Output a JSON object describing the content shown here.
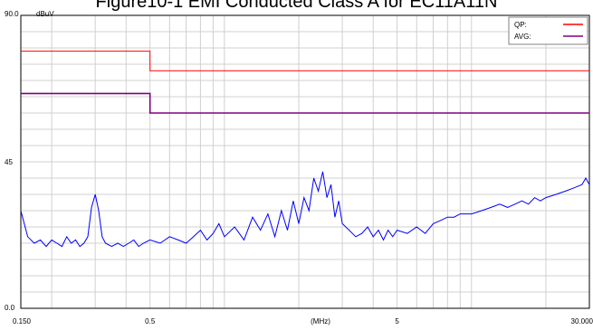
{
  "title": "Figure10-1 EMI Conducted Class A for EC11A11N",
  "chart_data": {
    "type": "line",
    "title": "Figure10-1 EMI Conducted Class A for EC11A11N",
    "xlabel": "(MHz)",
    "ylabel": "dBuV",
    "x_scale": "log",
    "xlim": [
      0.15,
      30.0
    ],
    "ylim": [
      0.0,
      90.0
    ],
    "grid": true,
    "legend_position": "top-right",
    "x_tick_labels": [
      {
        "value": 0.15,
        "label": "0.150"
      },
      {
        "value": 0.5,
        "label": "0.5"
      },
      {
        "value": 5,
        "label": "5"
      },
      {
        "value": 30.0,
        "label": "30.000"
      }
    ],
    "y_tick_labels": [
      {
        "value": 90.0,
        "label": "90.0"
      },
      {
        "value": 45,
        "label": "45"
      },
      {
        "value": 0.0,
        "label": "0.0"
      }
    ],
    "x_center_label": "(MHz)",
    "series": [
      {
        "name": "QP:",
        "color": "#ff0000",
        "points": [
          [
            0.15,
            79
          ],
          [
            0.5,
            79
          ],
          [
            0.5,
            73
          ],
          [
            30.0,
            73
          ]
        ]
      },
      {
        "name": "AVG:",
        "color": "#800080",
        "points": [
          [
            0.15,
            66
          ],
          [
            0.5,
            66
          ],
          [
            0.5,
            60
          ],
          [
            30.0,
            60
          ]
        ]
      },
      {
        "color": "#0000ff",
        "points": [
          [
            0.15,
            30
          ],
          [
            0.16,
            22
          ],
          [
            0.17,
            20
          ],
          [
            0.18,
            21
          ],
          [
            0.19,
            19
          ],
          [
            0.2,
            21
          ],
          [
            0.21,
            20
          ],
          [
            0.22,
            19
          ],
          [
            0.23,
            22
          ],
          [
            0.24,
            20
          ],
          [
            0.25,
            21
          ],
          [
            0.26,
            19
          ],
          [
            0.27,
            20
          ],
          [
            0.28,
            22
          ],
          [
            0.29,
            31
          ],
          [
            0.3,
            35
          ],
          [
            0.31,
            30
          ],
          [
            0.32,
            22
          ],
          [
            0.33,
            20
          ],
          [
            0.35,
            19
          ],
          [
            0.37,
            20
          ],
          [
            0.39,
            19
          ],
          [
            0.41,
            20
          ],
          [
            0.43,
            21
          ],
          [
            0.45,
            19
          ],
          [
            0.47,
            20
          ],
          [
            0.5,
            21
          ],
          [
            0.55,
            20
          ],
          [
            0.6,
            22
          ],
          [
            0.65,
            21
          ],
          [
            0.7,
            20
          ],
          [
            0.75,
            22
          ],
          [
            0.8,
            24
          ],
          [
            0.85,
            21
          ],
          [
            0.9,
            23
          ],
          [
            0.95,
            26
          ],
          [
            1.0,
            22
          ],
          [
            1.1,
            25
          ],
          [
            1.2,
            21
          ],
          [
            1.3,
            28
          ],
          [
            1.4,
            24
          ],
          [
            1.5,
            29
          ],
          [
            1.6,
            22
          ],
          [
            1.7,
            30
          ],
          [
            1.8,
            24
          ],
          [
            1.9,
            33
          ],
          [
            2.0,
            26
          ],
          [
            2.1,
            34
          ],
          [
            2.2,
            30
          ],
          [
            2.3,
            40
          ],
          [
            2.4,
            36
          ],
          [
            2.5,
            42
          ],
          [
            2.6,
            34
          ],
          [
            2.7,
            38
          ],
          [
            2.8,
            28
          ],
          [
            2.9,
            33
          ],
          [
            3.0,
            26
          ],
          [
            3.2,
            24
          ],
          [
            3.4,
            22
          ],
          [
            3.6,
            23
          ],
          [
            3.8,
            25
          ],
          [
            4.0,
            22
          ],
          [
            4.2,
            24
          ],
          [
            4.4,
            21
          ],
          [
            4.6,
            24
          ],
          [
            4.8,
            22
          ],
          [
            5.0,
            24
          ],
          [
            5.5,
            23
          ],
          [
            6.0,
            25
          ],
          [
            6.5,
            23
          ],
          [
            7.0,
            26
          ],
          [
            7.5,
            27
          ],
          [
            8.0,
            28
          ],
          [
            8.5,
            28
          ],
          [
            9.0,
            29
          ],
          [
            10.0,
            29
          ],
          [
            11.0,
            30
          ],
          [
            12.0,
            31
          ],
          [
            13.0,
            32
          ],
          [
            14.0,
            31
          ],
          [
            15.0,
            32
          ],
          [
            16.0,
            33
          ],
          [
            17.0,
            32
          ],
          [
            18.0,
            34
          ],
          [
            19.0,
            33
          ],
          [
            20.0,
            34
          ],
          [
            22.0,
            35
          ],
          [
            24.0,
            36
          ],
          [
            26.0,
            37
          ],
          [
            28.0,
            38
          ],
          [
            29.0,
            40
          ],
          [
            30.0,
            38
          ]
        ]
      }
    ]
  }
}
